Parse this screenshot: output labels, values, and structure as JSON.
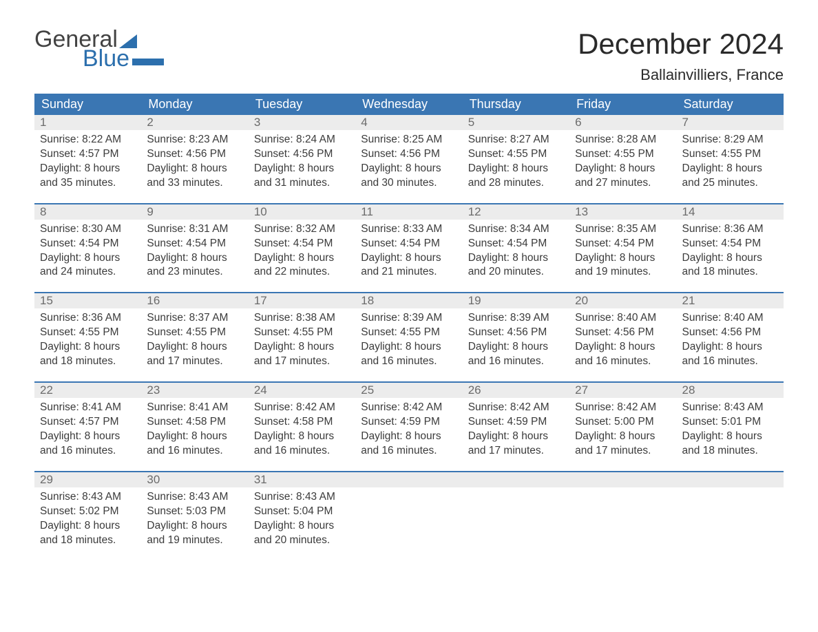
{
  "logo": {
    "text1": "General",
    "text2": "Blue",
    "tri_color": "#2c6fad"
  },
  "title": "December 2024",
  "location": "Ballainvilliers, France",
  "colors": {
    "header_bg": "#3a76b3",
    "header_text": "#ffffff",
    "daynum_bg": "#ececec",
    "daynum_text": "#6b6b6b",
    "body_text": "#3b3b3b",
    "rule": "#3a76b3"
  },
  "day_headers": [
    "Sunday",
    "Monday",
    "Tuesday",
    "Wednesday",
    "Thursday",
    "Friday",
    "Saturday"
  ],
  "weeks": [
    [
      {
        "n": "1",
        "sr": "Sunrise: 8:22 AM",
        "ss": "Sunset: 4:57 PM",
        "d1": "Daylight: 8 hours",
        "d2": "and 35 minutes."
      },
      {
        "n": "2",
        "sr": "Sunrise: 8:23 AM",
        "ss": "Sunset: 4:56 PM",
        "d1": "Daylight: 8 hours",
        "d2": "and 33 minutes."
      },
      {
        "n": "3",
        "sr": "Sunrise: 8:24 AM",
        "ss": "Sunset: 4:56 PM",
        "d1": "Daylight: 8 hours",
        "d2": "and 31 minutes."
      },
      {
        "n": "4",
        "sr": "Sunrise: 8:25 AM",
        "ss": "Sunset: 4:56 PM",
        "d1": "Daylight: 8 hours",
        "d2": "and 30 minutes."
      },
      {
        "n": "5",
        "sr": "Sunrise: 8:27 AM",
        "ss": "Sunset: 4:55 PM",
        "d1": "Daylight: 8 hours",
        "d2": "and 28 minutes."
      },
      {
        "n": "6",
        "sr": "Sunrise: 8:28 AM",
        "ss": "Sunset: 4:55 PM",
        "d1": "Daylight: 8 hours",
        "d2": "and 27 minutes."
      },
      {
        "n": "7",
        "sr": "Sunrise: 8:29 AM",
        "ss": "Sunset: 4:55 PM",
        "d1": "Daylight: 8 hours",
        "d2": "and 25 minutes."
      }
    ],
    [
      {
        "n": "8",
        "sr": "Sunrise: 8:30 AM",
        "ss": "Sunset: 4:54 PM",
        "d1": "Daylight: 8 hours",
        "d2": "and 24 minutes."
      },
      {
        "n": "9",
        "sr": "Sunrise: 8:31 AM",
        "ss": "Sunset: 4:54 PM",
        "d1": "Daylight: 8 hours",
        "d2": "and 23 minutes."
      },
      {
        "n": "10",
        "sr": "Sunrise: 8:32 AM",
        "ss": "Sunset: 4:54 PM",
        "d1": "Daylight: 8 hours",
        "d2": "and 22 minutes."
      },
      {
        "n": "11",
        "sr": "Sunrise: 8:33 AM",
        "ss": "Sunset: 4:54 PM",
        "d1": "Daylight: 8 hours",
        "d2": "and 21 minutes."
      },
      {
        "n": "12",
        "sr": "Sunrise: 8:34 AM",
        "ss": "Sunset: 4:54 PM",
        "d1": "Daylight: 8 hours",
        "d2": "and 20 minutes."
      },
      {
        "n": "13",
        "sr": "Sunrise: 8:35 AM",
        "ss": "Sunset: 4:54 PM",
        "d1": "Daylight: 8 hours",
        "d2": "and 19 minutes."
      },
      {
        "n": "14",
        "sr": "Sunrise: 8:36 AM",
        "ss": "Sunset: 4:54 PM",
        "d1": "Daylight: 8 hours",
        "d2": "and 18 minutes."
      }
    ],
    [
      {
        "n": "15",
        "sr": "Sunrise: 8:36 AM",
        "ss": "Sunset: 4:55 PM",
        "d1": "Daylight: 8 hours",
        "d2": "and 18 minutes."
      },
      {
        "n": "16",
        "sr": "Sunrise: 8:37 AM",
        "ss": "Sunset: 4:55 PM",
        "d1": "Daylight: 8 hours",
        "d2": "and 17 minutes."
      },
      {
        "n": "17",
        "sr": "Sunrise: 8:38 AM",
        "ss": "Sunset: 4:55 PM",
        "d1": "Daylight: 8 hours",
        "d2": "and 17 minutes."
      },
      {
        "n": "18",
        "sr": "Sunrise: 8:39 AM",
        "ss": "Sunset: 4:55 PM",
        "d1": "Daylight: 8 hours",
        "d2": "and 16 minutes."
      },
      {
        "n": "19",
        "sr": "Sunrise: 8:39 AM",
        "ss": "Sunset: 4:56 PM",
        "d1": "Daylight: 8 hours",
        "d2": "and 16 minutes."
      },
      {
        "n": "20",
        "sr": "Sunrise: 8:40 AM",
        "ss": "Sunset: 4:56 PM",
        "d1": "Daylight: 8 hours",
        "d2": "and 16 minutes."
      },
      {
        "n": "21",
        "sr": "Sunrise: 8:40 AM",
        "ss": "Sunset: 4:56 PM",
        "d1": "Daylight: 8 hours",
        "d2": "and 16 minutes."
      }
    ],
    [
      {
        "n": "22",
        "sr": "Sunrise: 8:41 AM",
        "ss": "Sunset: 4:57 PM",
        "d1": "Daylight: 8 hours",
        "d2": "and 16 minutes."
      },
      {
        "n": "23",
        "sr": "Sunrise: 8:41 AM",
        "ss": "Sunset: 4:58 PM",
        "d1": "Daylight: 8 hours",
        "d2": "and 16 minutes."
      },
      {
        "n": "24",
        "sr": "Sunrise: 8:42 AM",
        "ss": "Sunset: 4:58 PM",
        "d1": "Daylight: 8 hours",
        "d2": "and 16 minutes."
      },
      {
        "n": "25",
        "sr": "Sunrise: 8:42 AM",
        "ss": "Sunset: 4:59 PM",
        "d1": "Daylight: 8 hours",
        "d2": "and 16 minutes."
      },
      {
        "n": "26",
        "sr": "Sunrise: 8:42 AM",
        "ss": "Sunset: 4:59 PM",
        "d1": "Daylight: 8 hours",
        "d2": "and 17 minutes."
      },
      {
        "n": "27",
        "sr": "Sunrise: 8:42 AM",
        "ss": "Sunset: 5:00 PM",
        "d1": "Daylight: 8 hours",
        "d2": "and 17 minutes."
      },
      {
        "n": "28",
        "sr": "Sunrise: 8:43 AM",
        "ss": "Sunset: 5:01 PM",
        "d1": "Daylight: 8 hours",
        "d2": "and 18 minutes."
      }
    ],
    [
      {
        "n": "29",
        "sr": "Sunrise: 8:43 AM",
        "ss": "Sunset: 5:02 PM",
        "d1": "Daylight: 8 hours",
        "d2": "and 18 minutes."
      },
      {
        "n": "30",
        "sr": "Sunrise: 8:43 AM",
        "ss": "Sunset: 5:03 PM",
        "d1": "Daylight: 8 hours",
        "d2": "and 19 minutes."
      },
      {
        "n": "31",
        "sr": "Sunrise: 8:43 AM",
        "ss": "Sunset: 5:04 PM",
        "d1": "Daylight: 8 hours",
        "d2": "and 20 minutes."
      },
      {
        "n": "",
        "sr": "",
        "ss": "",
        "d1": "",
        "d2": ""
      },
      {
        "n": "",
        "sr": "",
        "ss": "",
        "d1": "",
        "d2": ""
      },
      {
        "n": "",
        "sr": "",
        "ss": "",
        "d1": "",
        "d2": ""
      },
      {
        "n": "",
        "sr": "",
        "ss": "",
        "d1": "",
        "d2": ""
      }
    ]
  ]
}
